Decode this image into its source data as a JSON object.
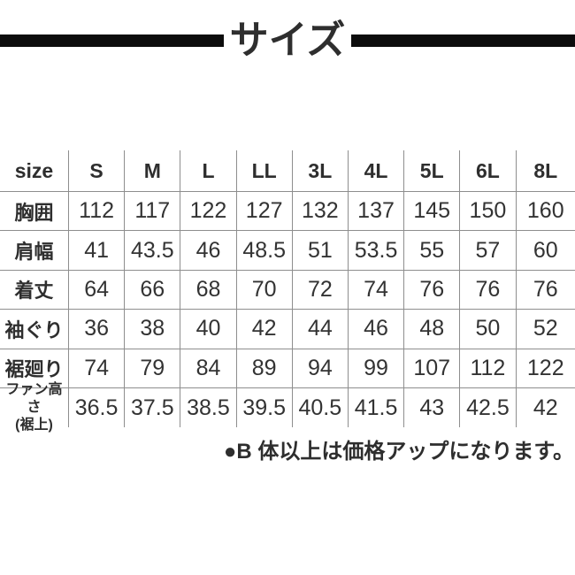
{
  "chart_data": {
    "type": "table",
    "title": "サイズ",
    "columns": [
      "size",
      "S",
      "M",
      "L",
      "LL",
      "3L",
      "4L",
      "5L",
      "6L",
      "8L"
    ],
    "rows": [
      {
        "label": "胸囲",
        "values": [
          "112",
          "117",
          "122",
          "127",
          "132",
          "137",
          "145",
          "150",
          "160"
        ]
      },
      {
        "label": "肩幅",
        "values": [
          "41",
          "43.5",
          "46",
          "48.5",
          "51",
          "53.5",
          "55",
          "57",
          "60"
        ]
      },
      {
        "label": "着丈",
        "values": [
          "64",
          "66",
          "68",
          "70",
          "72",
          "74",
          "76",
          "76",
          "76"
        ]
      },
      {
        "label": "袖ぐり",
        "values": [
          "36",
          "38",
          "40",
          "42",
          "44",
          "46",
          "48",
          "50",
          "52"
        ]
      },
      {
        "label": "裾廻り",
        "values": [
          "74",
          "79",
          "84",
          "89",
          "94",
          "99",
          "107",
          "112",
          "122"
        ]
      },
      {
        "label": "ファン高さ\n(裾上)",
        "values": [
          "36.5",
          "37.5",
          "38.5",
          "39.5",
          "40.5",
          "41.5",
          "43",
          "42.5",
          "42"
        ]
      }
    ],
    "note": "●B 体以上は価格アップになります。"
  },
  "colors": {
    "bar": "#0c0c0c",
    "heading_text": "#2e2e2e",
    "value_text": "#333333",
    "grid_line": "#8e8e8e"
  }
}
